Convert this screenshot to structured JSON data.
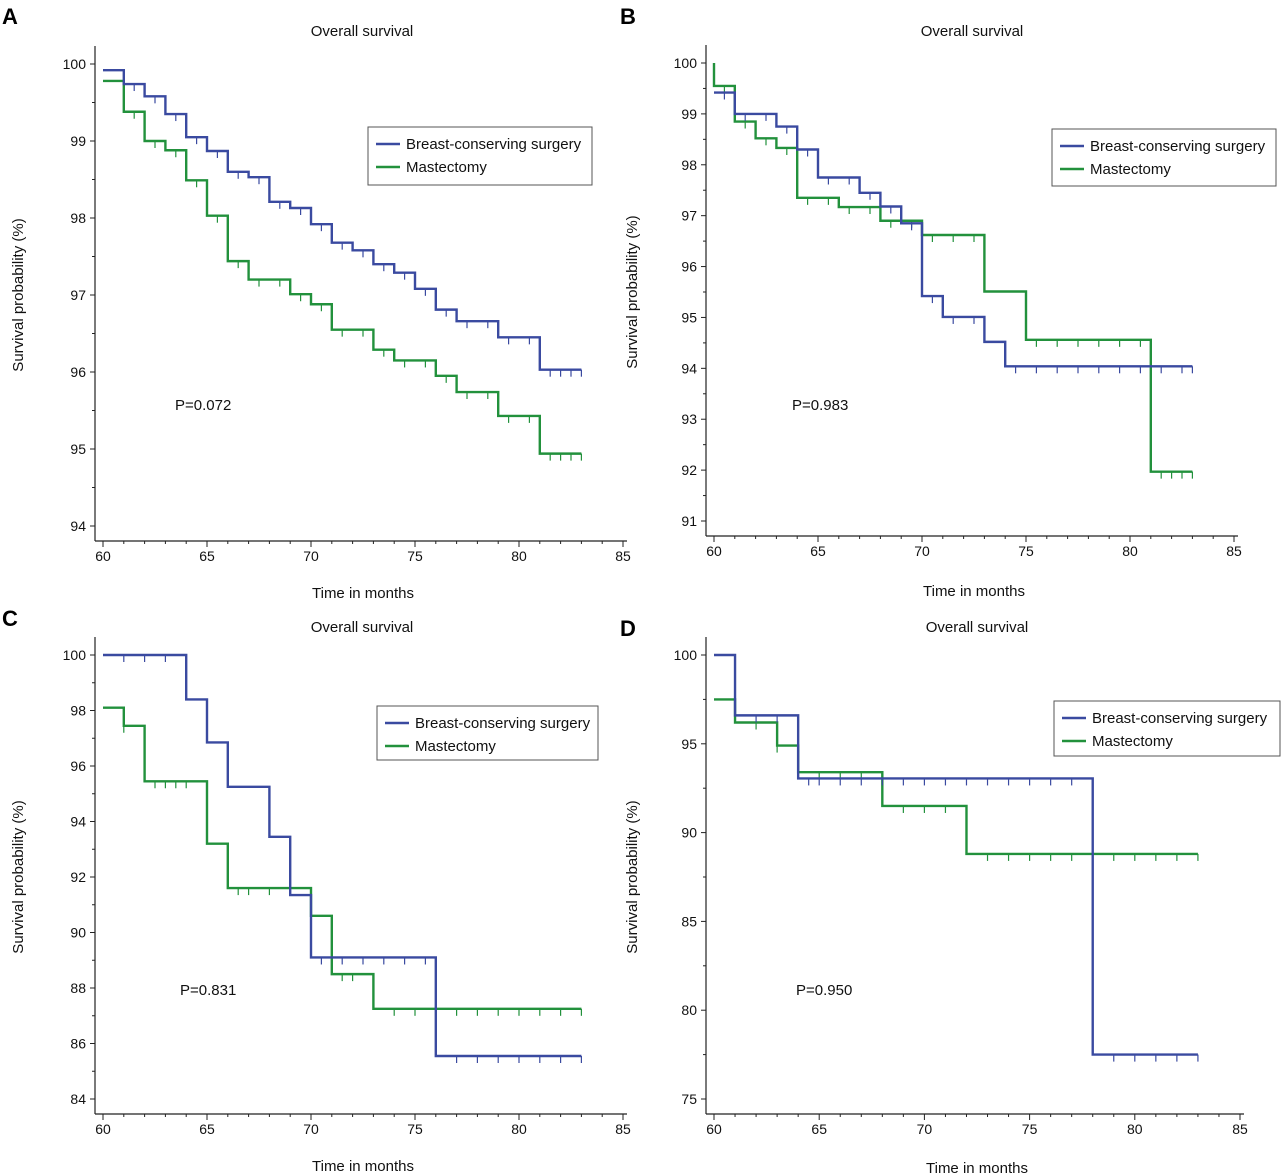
{
  "colors": {
    "bcs": "#3a4aa0",
    "mastectomy": "#22913c",
    "axis": "#222222"
  },
  "legend": {
    "bcs": "Breast-conserving surgery",
    "mastectomy": "Mastectomy"
  },
  "chart_data": [
    {
      "panel": "A",
      "type": "line",
      "title": "Overall survival",
      "xlabel": "Time in months",
      "ylabel": "Survival probability (%)",
      "xlim": [
        60,
        85
      ],
      "ylim": [
        94,
        100
      ],
      "xticks": [
        60,
        65,
        70,
        75,
        80,
        85
      ],
      "yticks": [
        94,
        95,
        96,
        97,
        98,
        99,
        100
      ],
      "pvalue": "P=0.072",
      "series": [
        {
          "name": "Breast-conserving surgery",
          "key": "bcs",
          "end": 83,
          "steps": [
            [
              60,
              99.92
            ],
            [
              61,
              99.74
            ],
            [
              62,
              99.58
            ],
            [
              63,
              99.35
            ],
            [
              64,
              99.05
            ],
            [
              65,
              98.87
            ],
            [
              66,
              98.6
            ],
            [
              67,
              98.53
            ],
            [
              68,
              98.21
            ],
            [
              69,
              98.13
            ],
            [
              70,
              97.92
            ],
            [
              71,
              97.68
            ],
            [
              72,
              97.58
            ],
            [
              73,
              97.4
            ],
            [
              74,
              97.29
            ],
            [
              75,
              97.08
            ],
            [
              76,
              96.81
            ],
            [
              77,
              96.66
            ],
            [
              79,
              96.45
            ],
            [
              81,
              96.03
            ]
          ],
          "censor": [
            61.5,
            62.5,
            63.5,
            64.5,
            65.5,
            66.5,
            67.5,
            68.5,
            69.5,
            70.5,
            71.5,
            72.5,
            73.5,
            74.5,
            75.5,
            76.5,
            77.5,
            78.5,
            79.5,
            80.5,
            81.5,
            82,
            82.5,
            83
          ]
        },
        {
          "name": "Mastectomy",
          "key": "mastectomy",
          "end": 83,
          "steps": [
            [
              60,
              99.78
            ],
            [
              61,
              99.38
            ],
            [
              62,
              99.0
            ],
            [
              63,
              98.88
            ],
            [
              64,
              98.49
            ],
            [
              65,
              98.03
            ],
            [
              66,
              97.44
            ],
            [
              67,
              97.2
            ],
            [
              69,
              97.01
            ],
            [
              70,
              96.88
            ],
            [
              71,
              96.55
            ],
            [
              73,
              96.29
            ],
            [
              74,
              96.15
            ],
            [
              76,
              95.95
            ],
            [
              77,
              95.74
            ],
            [
              79,
              95.43
            ],
            [
              81,
              94.94
            ]
          ],
          "censor": [
            61.5,
            62.5,
            63.5,
            64.5,
            65.5,
            66.5,
            67.5,
            68.5,
            69.5,
            70.5,
            71.5,
            72.5,
            73.5,
            74.5,
            75.5,
            76.5,
            77.5,
            78.5,
            79.5,
            80.5,
            81.5,
            82,
            82.5,
            83
          ]
        }
      ]
    },
    {
      "panel": "B",
      "type": "line",
      "title": "Overall survival",
      "xlabel": "Time in months",
      "ylabel": "Survival probability (%)",
      "xlim": [
        60,
        85
      ],
      "ylim": [
        91,
        100
      ],
      "xticks": [
        60,
        65,
        70,
        75,
        80,
        85
      ],
      "yticks": [
        91,
        92,
        93,
        94,
        95,
        96,
        97,
        98,
        99,
        100
      ],
      "pvalue": "P=0.983",
      "series": [
        {
          "name": "Breast-conserving surgery",
          "key": "bcs",
          "end": 83,
          "steps": [
            [
              60,
              99.42
            ],
            [
              61,
              99.0
            ],
            [
              63,
              98.75
            ],
            [
              64,
              98.3
            ],
            [
              65,
              97.75
            ],
            [
              67,
              97.45
            ],
            [
              68,
              97.18
            ],
            [
              69,
              96.85
            ],
            [
              70,
              95.42
            ],
            [
              71,
              95.01
            ],
            [
              73,
              94.52
            ],
            [
              74,
              94.04
            ]
          ],
          "censor": [
            60.5,
            61.5,
            62.5,
            63.5,
            64.5,
            65.5,
            66.5,
            67.5,
            68.5,
            69.5,
            70.5,
            71.5,
            72.5,
            74.5,
            75.5,
            76.5,
            77.5,
            78.5,
            79.5,
            80.5,
            81.5,
            82.5,
            83
          ]
        },
        {
          "name": "Mastectomy",
          "key": "mastectomy",
          "end": 83,
          "steps": [
            [
              60,
              100
            ],
            [
              60,
              99.55
            ],
            [
              61,
              98.85
            ],
            [
              62,
              98.52
            ],
            [
              63,
              98.33
            ],
            [
              64,
              97.35
            ],
            [
              66,
              97.17
            ],
            [
              68,
              96.9
            ],
            [
              70,
              96.62
            ],
            [
              73,
              95.51
            ],
            [
              75,
              94.56
            ],
            [
              81,
              91.97
            ]
          ],
          "censor": [
            60.5,
            61.5,
            62.5,
            63.5,
            64.5,
            65.5,
            66.5,
            67.5,
            68.5,
            69.5,
            70.5,
            71.5,
            72.5,
            75.5,
            76.5,
            77.5,
            78.5,
            79.5,
            80.5,
            81.5,
            82,
            82.5,
            83
          ]
        }
      ]
    },
    {
      "panel": "C",
      "type": "line",
      "title": "Overall survival",
      "xlabel": "Time in months",
      "ylabel": "Survival probability (%)",
      "xlim": [
        60,
        85
      ],
      "ylim": [
        84,
        100
      ],
      "xticks": [
        60,
        65,
        70,
        75,
        80,
        85
      ],
      "yticks": [
        84,
        86,
        88,
        90,
        92,
        94,
        96,
        98,
        100
      ],
      "pvalue": "P=0.831",
      "series": [
        {
          "name": "Breast-conserving surgery",
          "key": "bcs",
          "end": 83,
          "steps": [
            [
              60,
              100
            ],
            [
              64,
              98.4
            ],
            [
              65,
              96.85
            ],
            [
              66,
              95.25
            ],
            [
              68,
              93.45
            ],
            [
              69,
              91.35
            ],
            [
              70,
              89.1
            ],
            [
              76,
              85.55
            ]
          ],
          "censor": [
            61,
            62,
            63,
            70.5,
            71.5,
            72.5,
            73.5,
            74.5,
            75.5,
            77,
            78,
            79,
            80,
            81,
            82,
            83
          ]
        },
        {
          "name": "Mastectomy",
          "key": "mastectomy",
          "end": 83,
          "steps": [
            [
              60,
              98.1
            ],
            [
              61,
              97.45
            ],
            [
              62,
              95.45
            ],
            [
              65,
              93.2
            ],
            [
              66,
              91.6
            ],
            [
              70,
              90.6
            ],
            [
              71,
              88.5
            ],
            [
              73,
              87.25
            ]
          ],
          "censor": [
            61,
            62.5,
            63,
            63.5,
            64,
            66.5,
            67,
            68,
            69,
            71.5,
            72,
            74,
            75,
            76,
            77,
            78,
            79,
            80,
            81,
            82,
            83
          ]
        }
      ]
    },
    {
      "panel": "D",
      "type": "line",
      "title": "Overall survival",
      "xlabel": "Time in months",
      "ylabel": "Survival probability (%)",
      "xlim": [
        60,
        85
      ],
      "ylim": [
        75,
        100
      ],
      "xticks": [
        60,
        65,
        70,
        75,
        80,
        85
      ],
      "yticks": [
        75,
        80,
        85,
        90,
        95,
        100
      ],
      "pvalue": "P=0.950",
      "series": [
        {
          "name": "Breast-conserving surgery",
          "key": "bcs",
          "end": 83,
          "steps": [
            [
              60,
              100
            ],
            [
              61,
              96.6
            ],
            [
              64,
              93.05
            ],
            [
              78,
              77.5
            ]
          ],
          "censor": [
            62,
            63,
            64.5,
            65,
            66,
            67,
            68,
            69,
            70,
            71,
            72,
            73,
            74,
            75,
            76,
            77,
            79,
            80,
            81,
            82,
            83
          ]
        },
        {
          "name": "Mastectomy",
          "key": "mastectomy",
          "end": 83,
          "steps": [
            [
              60,
              97.5
            ],
            [
              61,
              96.2
            ],
            [
              63,
              94.9
            ],
            [
              64,
              93.4
            ],
            [
              68,
              91.5
            ],
            [
              72,
              88.8
            ]
          ],
          "censor": [
            62,
            63,
            64,
            65,
            66,
            67,
            69,
            70,
            71,
            73,
            74,
            75,
            76,
            77,
            78,
            79,
            80,
            81,
            82,
            83
          ]
        }
      ]
    }
  ]
}
